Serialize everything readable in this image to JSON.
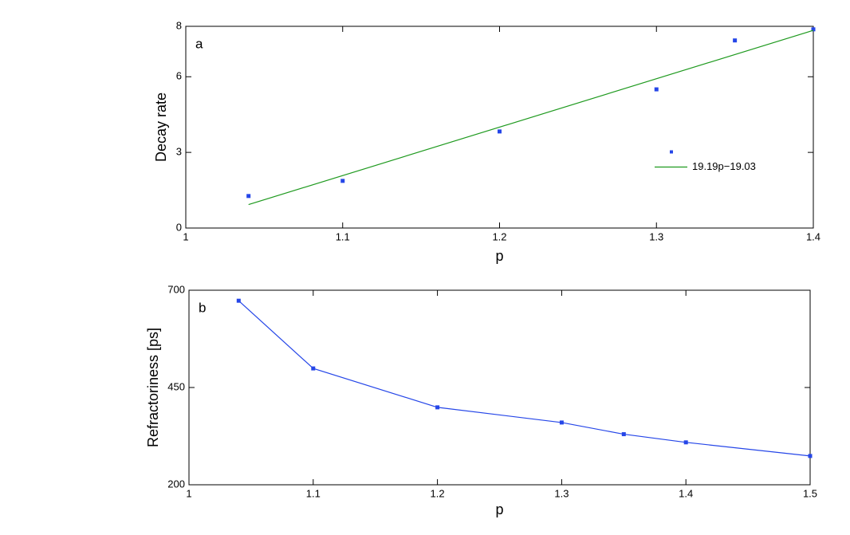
{
  "chart_data": [
    {
      "type": "scatter",
      "panel_label": "a",
      "xlabel": "p",
      "ylabel": "Decay rate",
      "xlim": [
        1,
        1.4
      ],
      "xticks": [
        1,
        1.1,
        1.2,
        1.3,
        1.4
      ],
      "ylim": [
        0,
        8
      ],
      "yticks": [
        0,
        3,
        6,
        8
      ],
      "legend": "east",
      "series": [
        {
          "color": "#2546e8",
          "markers": true,
          "line": false,
          "x": [
            1.04,
            1.1,
            1.2,
            1.3,
            1.35,
            1.4
          ],
          "values": [
            1.27,
            1.87,
            3.83,
            5.5,
            7.44,
            7.88
          ]
        },
        {
          "name": "19.19p−19.03",
          "color": "#1f9a1f",
          "markers": false,
          "line": true,
          "x": [
            1.04,
            1.4
          ],
          "values": [
            0.93,
            7.84
          ]
        }
      ]
    },
    {
      "type": "line",
      "panel_label": "b",
      "xlabel": "p",
      "ylabel": "Refractoriness [ps]",
      "xlim": [
        1,
        1.5
      ],
      "xticks": [
        1,
        1.1,
        1.2,
        1.3,
        1.4,
        1.5
      ],
      "ylim": [
        200,
        700
      ],
      "yticks": [
        200,
        450,
        700
      ],
      "series": [
        {
          "color": "#2546e8",
          "markers": true,
          "line": true,
          "x": [
            1.04,
            1.1,
            1.2,
            1.3,
            1.35,
            1.4,
            1.5
          ],
          "values": [
            673,
            499,
            399,
            360,
            330,
            309,
            274
          ]
        }
      ]
    }
  ]
}
